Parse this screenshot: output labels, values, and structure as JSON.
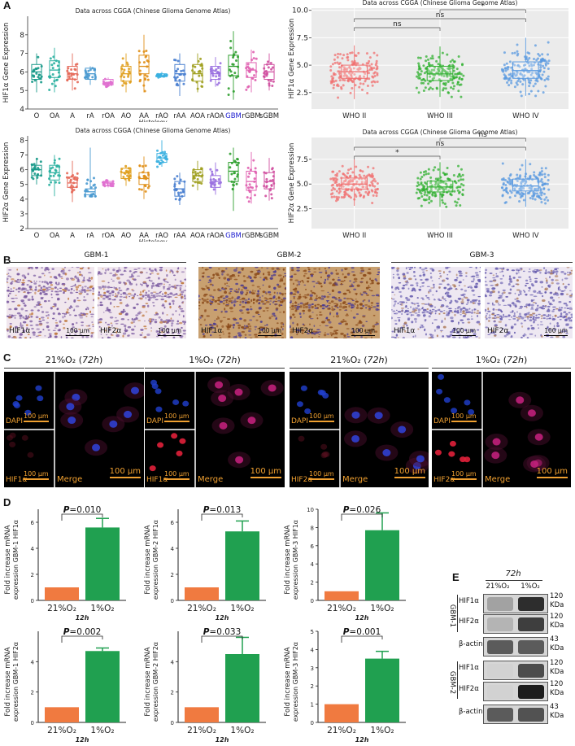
{
  "panel_labels": {
    "a": "A",
    "b": "B",
    "c": "C",
    "d": "D",
    "e": "E"
  },
  "colors": {
    "histology": [
      "#1a9a8a",
      "#2ab0a0",
      "#e56a5a",
      "#4a9ad0",
      "#e070d0",
      "#e0a020",
      "#e0901a",
      "#3ab0e0",
      "#4a80d0",
      "#a0a020",
      "#9a70e0",
      "#30a030",
      "#e060b0",
      "#d050a0"
    ],
    "who": [
      "#f07070",
      "#30b030",
      "#5a9ae0"
    ],
    "bar_normoxia": "#f07a40",
    "bar_hypoxia": "#20a050",
    "gbm_label": "#1a1ad0",
    "if_label": "#f0a030"
  },
  "chart_data": [
    {
      "type": "box",
      "title": "Data across CGGA (Chinese Glioma Genome Atlas)",
      "xlabel": "Histology",
      "ylabel": "HIF1α Gene Expression",
      "categories": [
        "O",
        "OA",
        "A",
        "rA",
        "rOA",
        "AO",
        "AA",
        "rAO",
        "rAA",
        "AOA",
        "rAOA",
        "GBM",
        "rGBM",
        "sGBM"
      ],
      "ylim": [
        4,
        9
      ],
      "yticks": [
        4,
        5,
        6,
        7,
        8
      ],
      "median": [
        6.0,
        6.1,
        5.9,
        5.9,
        5.4,
        5.9,
        6.3,
        5.8,
        5.9,
        5.9,
        5.9,
        6.3,
        6.1,
        6.0
      ],
      "q1": [
        5.6,
        5.7,
        5.6,
        5.6,
        5.3,
        5.5,
        5.9,
        5.75,
        5.5,
        5.5,
        5.6,
        5.8,
        5.7,
        5.6
      ],
      "q3": [
        6.4,
        6.6,
        6.3,
        6.2,
        5.6,
        6.3,
        6.9,
        5.9,
        6.4,
        6.4,
        6.3,
        6.9,
        6.5,
        6.4
      ],
      "min": [
        4.9,
        4.9,
        5.0,
        5.3,
        5.2,
        4.9,
        4.9,
        5.7,
        4.7,
        4.9,
        5.2,
        4.5,
        4.9,
        5.0
      ],
      "max": [
        7.0,
        7.3,
        7.0,
        6.3,
        5.7,
        7.0,
        8.0,
        6.0,
        7.0,
        7.0,
        6.8,
        8.2,
        7.2,
        7.0
      ]
    },
    {
      "type": "box",
      "title": "Data across CGGA (Chinese Glioma Genome Atlas)",
      "xlabel": "",
      "ylabel": "HIF1α Gene Expression",
      "categories": [
        "WHO II",
        "WHO III",
        "WHO IV"
      ],
      "ylim": [
        1,
        10.2
      ],
      "yticks": [
        2.5,
        5.0,
        7.5,
        10.0
      ],
      "median": [
        4.4,
        4.2,
        4.5
      ],
      "q1": [
        3.8,
        3.6,
        3.8
      ],
      "q3": [
        5.0,
        4.9,
        5.3
      ],
      "min": [
        1.9,
        2.1,
        2.2
      ],
      "max": [
        6.8,
        6.7,
        7.5
      ],
      "comparisons": [
        {
          "pair": [
            "WHO II",
            "WHO III"
          ],
          "label": "ns"
        },
        {
          "pair": [
            "WHO II",
            "WHO IV"
          ],
          "label": "ns"
        },
        {
          "pair": [
            "WHO III",
            "WHO IV"
          ],
          "label": "*"
        }
      ]
    },
    {
      "type": "box",
      "title": "Data across CGGA (Chinese Glioma Genome Atlas)",
      "xlabel": "Histology",
      "ylabel": "HIF2α Gene Expression",
      "categories": [
        "O",
        "OA",
        "A",
        "rA",
        "rOA",
        "AO",
        "AA",
        "rAO",
        "rAA",
        "AOA",
        "rAOA",
        "GBM",
        "rGBM",
        "sGBM"
      ],
      "ylim": [
        2,
        8.3
      ],
      "yticks": [
        2,
        3,
        4,
        5,
        6,
        7,
        8
      ],
      "median": [
        6.0,
        5.8,
        5.1,
        4.5,
        5.1,
        5.8,
        5.4,
        6.8,
        4.7,
        5.6,
        5.2,
        5.9,
        5.2,
        5.2
      ],
      "q1": [
        5.6,
        5.3,
        4.8,
        4.3,
        4.9,
        5.4,
        5.0,
        6.5,
        4.2,
        5.2,
        4.8,
        5.2,
        4.6,
        4.7
      ],
      "q3": [
        6.3,
        6.3,
        5.5,
        4.7,
        5.2,
        6.1,
        5.8,
        7.1,
        5.2,
        6.0,
        5.6,
        6.5,
        5.9,
        5.8
      ],
      "min": [
        5.0,
        4.2,
        3.8,
        4.2,
        4.8,
        4.9,
        4.0,
        6.2,
        3.6,
        4.6,
        4.3,
        3.2,
        3.7,
        3.9
      ],
      "max": [
        6.8,
        7.0,
        6.6,
        7.5,
        5.3,
        6.3,
        6.9,
        8.0,
        5.8,
        6.6,
        6.5,
        7.5,
        7.2,
        6.8
      ]
    },
    {
      "type": "box",
      "title": "Data across CGGA (Chinese Glioma Genome Atlas)",
      "xlabel": "",
      "ylabel": "HIF2α Gene Expression",
      "categories": [
        "WHO II",
        "WHO III",
        "WHO IV"
      ],
      "ylim": [
        0.5,
        9.7
      ],
      "yticks": [
        2.5,
        5.0,
        7.5
      ],
      "median": [
        5.0,
        4.7,
        4.8
      ],
      "q1": [
        4.5,
        4.2,
        4.3
      ],
      "q3": [
        5.6,
        5.3,
        5.5
      ],
      "min": [
        2.8,
        2.7,
        2.7
      ],
      "max": [
        7.5,
        7.2,
        7.5
      ],
      "comparisons": [
        {
          "pair": [
            "WHO II",
            "WHO III"
          ],
          "label": "*"
        },
        {
          "pair": [
            "WHO II",
            "WHO IV"
          ],
          "label": "ns"
        },
        {
          "pair": [
            "WHO III",
            "WHO IV"
          ],
          "label": "ns"
        }
      ]
    },
    {
      "type": "bar",
      "categories": [
        "21%O₂",
        "1%O₂"
      ],
      "values": [
        1.0,
        5.6
      ],
      "errors": [
        0,
        0.7
      ],
      "ylim": [
        0,
        7
      ],
      "yticks": [
        0,
        2,
        4,
        6
      ],
      "ylabel": "Fold increase mRNA expression GBM-1 HIF1α",
      "xlabel": "12h",
      "pvalue": "=0.010"
    },
    {
      "type": "bar",
      "categories": [
        "21%O₂",
        "1%O₂"
      ],
      "values": [
        1.0,
        5.3
      ],
      "errors": [
        0,
        0.8
      ],
      "ylim": [
        0,
        7
      ],
      "yticks": [
        0,
        2,
        4,
        6
      ],
      "ylabel": "Fold increase mRNA expression GBM-2 HIF1α",
      "xlabel": "12h",
      "pvalue": "=0.013"
    },
    {
      "type": "bar",
      "categories": [
        "21%O₂",
        "1%O₂"
      ],
      "values": [
        1.0,
        7.7
      ],
      "errors": [
        0,
        1.9
      ],
      "ylim": [
        0,
        10
      ],
      "yticks": [
        0,
        2,
        4,
        6,
        8,
        10
      ],
      "ylabel": "Fold increase mRNA expression GBM-3 HIF1α",
      "xlabel": "12h",
      "pvalue": "=0.026"
    },
    {
      "type": "bar",
      "categories": [
        "21%O₂",
        "1%O₂"
      ],
      "values": [
        1.0,
        4.7
      ],
      "errors": [
        0,
        0.2
      ],
      "ylim": [
        0,
        6
      ],
      "yticks": [
        0,
        2,
        4
      ],
      "ylabel": "Fold increase mRNA expression GBM-1 HIF2α",
      "xlabel": "12h",
      "pvalue": "=0.002"
    },
    {
      "type": "bar",
      "categories": [
        "21%O₂",
        "1%O₂"
      ],
      "values": [
        1.0,
        4.5
      ],
      "errors": [
        0,
        1.1
      ],
      "ylim": [
        0,
        6
      ],
      "yticks": [
        0,
        2,
        4
      ],
      "ylabel": "Fold increase mRNA expression GBM-2 HIF2α",
      "xlabel": "12h",
      "pvalue": "=0.033"
    },
    {
      "type": "bar",
      "categories": [
        "21%O₂",
        "1%O₂"
      ],
      "values": [
        1.0,
        3.5
      ],
      "errors": [
        0,
        0.4
      ],
      "ylim": [
        0,
        5
      ],
      "yticks": [
        0,
        1,
        2,
        3,
        4,
        5
      ],
      "ylabel": "Fold increase mRNA expression GBM-3 HIF2α",
      "xlabel": "12h",
      "pvalue": "=0.001"
    }
  ],
  "panelB": {
    "groups": [
      "GBM-1",
      "GBM-2",
      "GBM-3"
    ],
    "tiles": [
      {
        "label": "HIF1α",
        "scale": "100 μm",
        "tone": "light"
      },
      {
        "label": "HIF2α",
        "scale": "100 μm",
        "tone": "light"
      },
      {
        "label": "HIF1α",
        "scale": "100 μm",
        "tone": "dark"
      },
      {
        "label": "HIF2α",
        "scale": "100 μm",
        "tone": "dark"
      },
      {
        "label": "HIF1α",
        "scale": "100 μm",
        "tone": "pale"
      },
      {
        "label": "HIF2α",
        "scale": "100 μm",
        "tone": "pale"
      }
    ]
  },
  "panelC": {
    "groups": [
      {
        "cond": "21%O₂ (",
        "time": "72h",
        "close": ")",
        "marker": "HIF1α",
        "scale": "100 μm",
        "small_scale": "100 μm",
        "dapi": "DAPI",
        "merge": "Merge"
      },
      {
        "cond": "1%O₂ (",
        "time": "72h",
        "close": ")",
        "marker": "HIF1α",
        "scale": "100 μm",
        "small_scale": "100 μm",
        "dapi": "DAPI",
        "merge": "Merge"
      },
      {
        "cond": "21%O₂ (",
        "time": "72h",
        "close": ")",
        "marker": "HIF2α",
        "scale": "100 μm",
        "small_scale": "100 μm",
        "dapi": "DAPI",
        "merge": "Merge"
      },
      {
        "cond": "1%O₂ (",
        "time": "72h",
        "close": ")",
        "marker": "HIF2α",
        "scale": "100 μm",
        "small_scale": "100 μm",
        "dapi": "DAPI",
        "merge": "Merge"
      }
    ]
  },
  "panelE": {
    "time": "72h",
    "cols": [
      "21%O₂",
      "1%O₂"
    ],
    "group1": "GBM-1",
    "group2": "GBM-2",
    "rows": [
      {
        "label": "HIF1α",
        "kda": "120",
        "unit": "KDa",
        "int": [
          0.45,
          0.9
        ]
      },
      {
        "label": "HIF2α",
        "kda": "120",
        "unit": "KDa",
        "int": [
          0.35,
          0.85
        ]
      },
      {
        "label": "β-actin",
        "kda": "43",
        "unit": "KDa",
        "int": [
          0.75,
          0.75
        ]
      },
      {
        "label": "HIF1α",
        "kda": "120",
        "unit": "KDa",
        "int": [
          0.08,
          0.8
        ]
      },
      {
        "label": "HIF2α",
        "kda": "120",
        "unit": "KDa",
        "int": [
          0.08,
          0.95
        ]
      },
      {
        "label": "β-actin",
        "kda": "43",
        "unit": "KDa",
        "int": [
          0.75,
          0.78
        ]
      }
    ]
  }
}
